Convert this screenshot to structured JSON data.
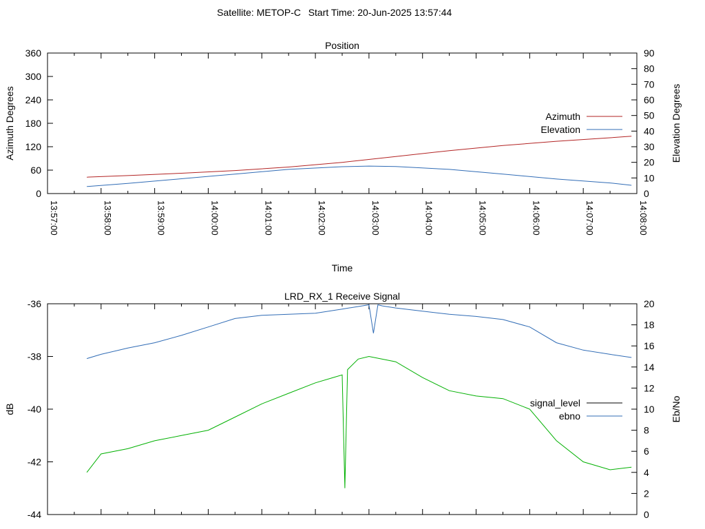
{
  "header": {
    "satellite": "Satellite: METOP-C",
    "start_time": "Start Time: 20-Jun-2025 13:57:44"
  },
  "chart_data": [
    {
      "type": "line",
      "title": "Position",
      "xlabel": "Time",
      "ylabel": "Azimuth Degrees",
      "y2label": "Elevation Degrees",
      "xlim": [
        "13:57:00",
        "14:08:00"
      ],
      "ylim": [
        0,
        360
      ],
      "y2lim": [
        0,
        90
      ],
      "xticks": [
        "13:57:00",
        "13:58:00",
        "13:59:00",
        "14:00:00",
        "14:01:00",
        "14:02:00",
        "14:03:00",
        "14:04:00",
        "14:05:00",
        "14:06:00",
        "14:07:00",
        "14:08:00"
      ],
      "yticks": [
        0,
        60,
        120,
        180,
        240,
        300,
        360
      ],
      "y2ticks": [
        0,
        10,
        20,
        30,
        40,
        50,
        60,
        70,
        80,
        90
      ],
      "grid": false,
      "legend_position": "right",
      "series": [
        {
          "name": "Azimuth",
          "axis": "y",
          "color": "#b22222",
          "x": [
            "13:57:44",
            "13:58:30",
            "13:59:30",
            "14:00:30",
            "14:01:30",
            "14:02:30",
            "14:03:30",
            "14:04:30",
            "14:05:30",
            "14:06:30",
            "14:07:30",
            "14:07:54"
          ],
          "y": [
            42,
            46,
            52,
            59,
            68,
            80,
            95,
            110,
            123,
            134,
            143,
            147
          ]
        },
        {
          "name": "Elevation",
          "axis": "y2",
          "color": "#2f6bb5",
          "x": [
            "13:57:44",
            "13:58:30",
            "13:59:30",
            "14:00:30",
            "14:01:30",
            "14:02:30",
            "14:03:00",
            "14:03:30",
            "14:04:30",
            "14:05:30",
            "14:06:30",
            "14:07:30",
            "14:07:54"
          ],
          "y": [
            4.5,
            6.5,
            9.5,
            12.5,
            15.5,
            17.2,
            17.6,
            17.3,
            15.5,
            12.5,
            9.3,
            6.8,
            5.3
          ]
        }
      ]
    },
    {
      "type": "line",
      "title": "LRD_RX_1 Receive Signal",
      "ylabel": "dB",
      "y2label": "Eb/No",
      "xlim": [
        "13:57:00",
        "14:08:00"
      ],
      "ylim": [
        -44,
        -36
      ],
      "y2lim": [
        0,
        20
      ],
      "yticks": [
        -44,
        -42,
        -40,
        -38,
        -36
      ],
      "y2ticks": [
        0,
        2,
        4,
        6,
        8,
        10,
        12,
        14,
        16,
        18,
        20
      ],
      "grid": false,
      "legend_position": "right",
      "legend": [
        {
          "name": "signal_level",
          "color": "#000000"
        },
        {
          "name": "ebno",
          "color": "#2f6bb5"
        }
      ],
      "series": [
        {
          "name": "",
          "axis": "y",
          "color": "#00b000",
          "x": [
            "13:57:44",
            "13:58:00",
            "13:58:30",
            "13:59:00",
            "13:59:30",
            "14:00:00",
            "14:00:30",
            "14:01:00",
            "14:01:30",
            "14:02:00",
            "14:02:20",
            "14:02:30",
            "14:02:33",
            "14:02:36",
            "14:02:48",
            "14:03:00",
            "14:03:30",
            "14:04:00",
            "14:04:30",
            "14:05:00",
            "14:05:30",
            "14:06:00",
            "14:06:30",
            "14:07:00",
            "14:07:30",
            "14:07:54"
          ],
          "y": [
            -42.4,
            -41.7,
            -41.5,
            -41.2,
            -41.0,
            -40.8,
            -40.3,
            -39.8,
            -39.4,
            -39.0,
            -38.8,
            -38.7,
            -43.0,
            -38.5,
            -38.1,
            -38.0,
            -38.2,
            -38.8,
            -39.3,
            -39.5,
            -39.6,
            -40.0,
            -41.2,
            -42.0,
            -42.3,
            -42.2
          ]
        },
        {
          "name": "",
          "axis": "y2",
          "color": "#2f6bb5",
          "x": [
            "13:57:44",
            "13:58:00",
            "13:58:30",
            "13:59:00",
            "13:59:30",
            "14:00:00",
            "14:00:30",
            "14:01:00",
            "14:01:30",
            "14:02:00",
            "14:02:30",
            "14:03:00",
            "14:03:05",
            "14:03:10",
            "14:03:15",
            "14:03:30",
            "14:04:00",
            "14:04:30",
            "14:05:00",
            "14:05:30",
            "14:06:00",
            "14:06:30",
            "14:07:00",
            "14:07:30",
            "14:07:54"
          ],
          "y": [
            14.8,
            15.2,
            15.8,
            16.3,
            17.0,
            17.8,
            18.6,
            18.9,
            19.0,
            19.1,
            19.5,
            19.9,
            17.2,
            19.9,
            19.8,
            19.6,
            19.3,
            19.0,
            18.8,
            18.5,
            17.8,
            16.3,
            15.6,
            15.2,
            14.9
          ]
        }
      ]
    }
  ]
}
